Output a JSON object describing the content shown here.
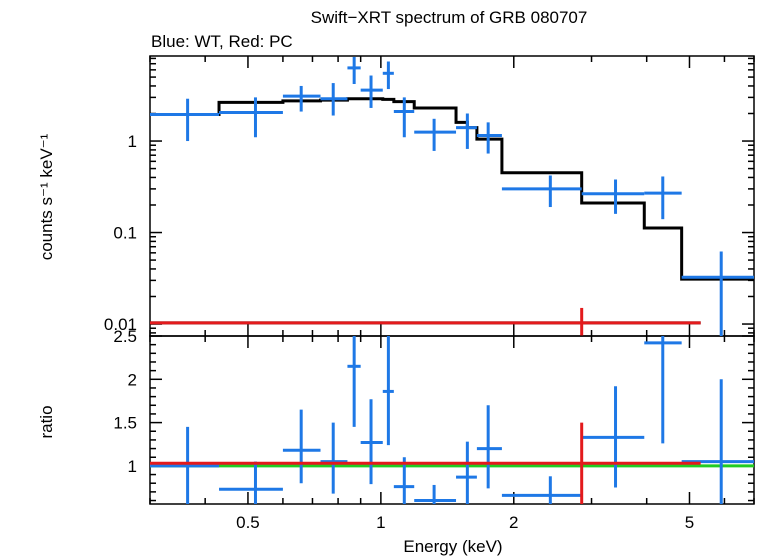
{
  "chart_data": [
    {
      "type": "scatter",
      "title": "Swift−XRT spectrum of GRB 080707",
      "subtitle": "Blue: WT, Red: PC",
      "xlabel": "Energy (keV)",
      "ylabel": "counts s⁻¹ keV⁻¹",
      "xscale": "log",
      "yscale": "log",
      "xlim": [
        0.3,
        7.0
      ],
      "ylim": [
        0.0074,
        8.5
      ],
      "xticks": [
        {
          "v": 0.5,
          "label": "0.5"
        },
        {
          "v": 1,
          "label": "1"
        },
        {
          "v": 2,
          "label": "2"
        },
        {
          "v": 5,
          "label": "5"
        }
      ],
      "yticks": [
        {
          "v": 0.01,
          "label": "0.01"
        },
        {
          "v": 0.1,
          "label": "0.1"
        },
        {
          "v": 1,
          "label": "1"
        }
      ],
      "series": [
        {
          "name": "WT",
          "color": "#1e78e6",
          "points": [
            {
              "x": 0.365,
              "xlo": 0.3,
              "xhi": 0.43,
              "y": 1.95,
              "ylo": 1.0,
              "yhi": 2.9
            },
            {
              "x": 0.52,
              "xlo": 0.43,
              "xhi": 0.6,
              "y": 2.05,
              "ylo": 1.1,
              "yhi": 3.0
            },
            {
              "x": 0.66,
              "xlo": 0.6,
              "xhi": 0.73,
              "y": 3.1,
              "ylo": 2.1,
              "yhi": 4.0
            },
            {
              "x": 0.78,
              "xlo": 0.73,
              "xhi": 0.84,
              "y": 2.9,
              "ylo": 1.9,
              "yhi": 4.3
            },
            {
              "x": 0.87,
              "xlo": 0.84,
              "xhi": 0.9,
              "y": 6.3,
              "ylo": 4.2,
              "yhi": 8.3
            },
            {
              "x": 0.95,
              "xlo": 0.9,
              "xhi": 1.01,
              "y": 3.6,
              "ylo": 2.3,
              "yhi": 5.2
            },
            {
              "x": 1.04,
              "xlo": 1.01,
              "xhi": 1.07,
              "y": 5.5,
              "ylo": 3.7,
              "yhi": 7.4
            },
            {
              "x": 1.13,
              "xlo": 1.07,
              "xhi": 1.19,
              "y": 2.1,
              "ylo": 1.1,
              "yhi": 3.0
            },
            {
              "x": 1.32,
              "xlo": 1.19,
              "xhi": 1.48,
              "y": 1.25,
              "ylo": 0.78,
              "yhi": 1.75
            },
            {
              "x": 1.57,
              "xlo": 1.48,
              "xhi": 1.65,
              "y": 1.4,
              "ylo": 0.82,
              "yhi": 2.0
            },
            {
              "x": 1.75,
              "xlo": 1.65,
              "xhi": 1.88,
              "y": 1.15,
              "ylo": 0.73,
              "yhi": 1.6
            },
            {
              "x": 2.42,
              "xlo": 1.88,
              "xhi": 2.85,
              "y": 0.3,
              "ylo": 0.19,
              "yhi": 0.42
            },
            {
              "x": 3.4,
              "xlo": 2.85,
              "xhi": 3.95,
              "y": 0.265,
              "ylo": 0.16,
              "yhi": 0.38
            },
            {
              "x": 4.35,
              "xlo": 3.95,
              "xhi": 4.8,
              "y": 0.27,
              "ylo": 0.14,
              "yhi": 0.41
            },
            {
              "x": 5.9,
              "xlo": 4.8,
              "xhi": 7.0,
              "y": 0.0325,
              "ylo": 0.0074,
              "yhi": 0.062
            }
          ]
        },
        {
          "name": "PC",
          "color": "#e31a1c",
          "points": [
            {
              "x": 2.85,
              "xlo": 0.3,
              "xhi": 5.3,
              "y": 0.0103,
              "ylo": 0.0075,
              "yhi": 0.015
            }
          ]
        }
      ],
      "models": [
        {
          "name": "WT model",
          "color": "#000000",
          "steps": [
            [
              0.3,
              0.43,
              1.95
            ],
            [
              0.43,
              0.6,
              2.65
            ],
            [
              0.6,
              0.73,
              2.75
            ],
            [
              0.73,
              0.84,
              2.8
            ],
            [
              0.84,
              0.9,
              2.9
            ],
            [
              0.9,
              1.01,
              2.9
            ],
            [
              1.01,
              1.07,
              2.85
            ],
            [
              1.07,
              1.19,
              2.7
            ],
            [
              1.19,
              1.48,
              2.3
            ],
            [
              1.48,
              1.57,
              1.6
            ],
            [
              1.57,
              1.65,
              1.4
            ],
            [
              1.65,
              1.88,
              1.05
            ],
            [
              1.88,
              2.85,
              0.45
            ],
            [
              2.85,
              3.95,
              0.21
            ],
            [
              3.95,
              4.8,
              0.112
            ],
            [
              4.8,
              7.0,
              0.031
            ]
          ]
        },
        {
          "name": "PC model",
          "color": "#000000",
          "steps": [
            [
              0.3,
              5.3,
              0.0103
            ]
          ]
        }
      ]
    },
    {
      "type": "scatter",
      "ylabel": "ratio",
      "xscale": "log",
      "yscale": "linear",
      "xlim": [
        0.3,
        7.0
      ],
      "ylim": [
        0.56,
        2.5
      ],
      "yticks": [
        {
          "v": 1,
          "label": "1"
        },
        {
          "v": 1.5,
          "label": "1.5"
        },
        {
          "v": 2,
          "label": "2"
        },
        {
          "v": 2.5,
          "label": "2.5"
        }
      ],
      "reference_line": {
        "y": 1,
        "color": "#22cc22"
      },
      "series": [
        {
          "name": "WT",
          "color": "#1e78e6",
          "points": [
            {
              "x": 0.365,
              "xlo": 0.3,
              "xhi": 0.43,
              "y": 1.0,
              "ylo": 0.56,
              "yhi": 1.45
            },
            {
              "x": 0.52,
              "xlo": 0.43,
              "xhi": 0.6,
              "y": 0.73,
              "ylo": 0.56,
              "yhi": 1.05
            },
            {
              "x": 0.66,
              "xlo": 0.6,
              "xhi": 0.73,
              "y": 1.18,
              "ylo": 0.8,
              "yhi": 1.65
            },
            {
              "x": 0.78,
              "xlo": 0.73,
              "xhi": 0.84,
              "y": 1.05,
              "ylo": 0.68,
              "yhi": 1.5
            },
            {
              "x": 0.87,
              "xlo": 0.84,
              "xhi": 0.9,
              "y": 2.15,
              "ylo": 1.45,
              "yhi": 2.95
            },
            {
              "x": 0.95,
              "xlo": 0.9,
              "xhi": 1.01,
              "y": 1.27,
              "ylo": 0.79,
              "yhi": 1.77
            },
            {
              "x": 1.04,
              "xlo": 1.01,
              "xhi": 1.07,
              "y": 1.86,
              "ylo": 1.24,
              "yhi": 2.5
            },
            {
              "x": 1.13,
              "xlo": 1.07,
              "xhi": 1.19,
              "y": 0.76,
              "ylo": 0.56,
              "yhi": 1.1
            },
            {
              "x": 1.32,
              "xlo": 1.19,
              "xhi": 1.48,
              "y": 0.6,
              "ylo": 0.56,
              "yhi": 0.78
            },
            {
              "x": 1.57,
              "xlo": 1.48,
              "xhi": 1.65,
              "y": 0.87,
              "ylo": 0.56,
              "yhi": 1.28
            },
            {
              "x": 1.75,
              "xlo": 1.65,
              "xhi": 1.88,
              "y": 1.2,
              "ylo": 0.74,
              "yhi": 1.7
            },
            {
              "x": 2.42,
              "xlo": 1.88,
              "xhi": 2.85,
              "y": 0.66,
              "ylo": 0.56,
              "yhi": 0.88
            },
            {
              "x": 3.4,
              "xlo": 2.85,
              "xhi": 3.95,
              "y": 1.33,
              "ylo": 0.75,
              "yhi": 1.92
            },
            {
              "x": 4.35,
              "xlo": 3.95,
              "xhi": 4.8,
              "y": 2.42,
              "ylo": 1.26,
              "yhi": 3.5
            },
            {
              "x": 5.9,
              "xlo": 4.8,
              "xhi": 7.0,
              "y": 1.05,
              "ylo": 0.56,
              "yhi": 2.0
            }
          ]
        },
        {
          "name": "PC",
          "color": "#e31a1c",
          "points": [
            {
              "x": 2.85,
              "xlo": 0.3,
              "xhi": 5.3,
              "y": 1.03,
              "ylo": 0.56,
              "yhi": 1.5
            }
          ]
        }
      ]
    }
  ]
}
